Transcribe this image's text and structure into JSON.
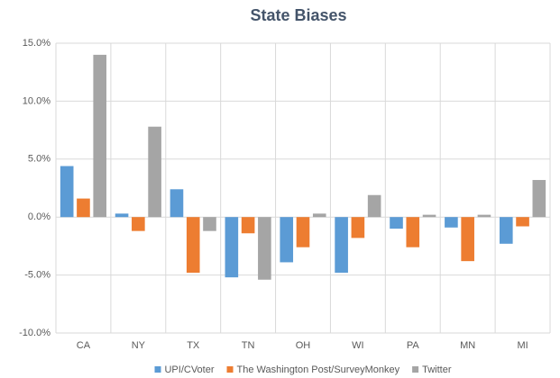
{
  "chart_data": {
    "type": "bar",
    "title": "State Biases",
    "categories": [
      "CA",
      "NY",
      "TX",
      "TN",
      "OH",
      "WI",
      "PA",
      "MN",
      "MI"
    ],
    "series": [
      {
        "name": "UPI/CVoter",
        "color": "#5b9bd5",
        "values": [
          4.4,
          0.3,
          2.4,
          -5.2,
          -3.9,
          -4.8,
          -1.0,
          -0.9,
          -2.3
        ]
      },
      {
        "name": "The Washington Post/SurveyMonkey",
        "color": "#ed7d31",
        "values": [
          1.6,
          -1.2,
          -4.8,
          -1.4,
          -2.6,
          -1.8,
          -2.6,
          -3.8,
          -0.8
        ]
      },
      {
        "name": "Twitter",
        "color": "#a5a5a5",
        "values": [
          14.0,
          7.8,
          -1.2,
          -5.4,
          0.3,
          1.9,
          0.2,
          0.2,
          3.2
        ]
      }
    ],
    "ylim": [
      -10,
      15
    ],
    "yticks": [
      {
        "value": -10,
        "label": "-10.0%"
      },
      {
        "value": -5,
        "label": "-5.0%"
      },
      {
        "value": 0,
        "label": "0.0%"
      },
      {
        "value": 5,
        "label": "5.0%"
      },
      {
        "value": 10,
        "label": "10.0%"
      },
      {
        "value": 15,
        "label": "15.0%"
      }
    ],
    "grid": true,
    "legend": "bottom"
  }
}
